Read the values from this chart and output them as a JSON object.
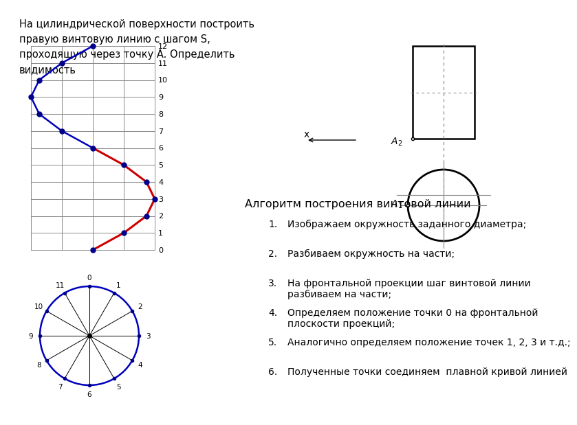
{
  "title_text": "На цилиндрической поверхности построить\nправую винтовую линию с шагом S,\nпроходящую через точку A. Определить\nвидимость",
  "algo_title": "Алгоритм построения винтовой линии",
  "algo_items": [
    "Изображаем окружность заданного диаметра;",
    "Разбиваем окружность на части;",
    "На фронтальной проекции шаг винтовой линии\nразбиваем на части;",
    "Определяем положение точки 0 на фронтальной\nплоскости проекций;",
    "Аналогично определяем положение точек 1, 2, 3 и т.д.;",
    "Полученные точки соединяем  плавной кривой линией"
  ],
  "grid_color": "#888888",
  "line_color_red": "#cc0000",
  "line_color_blue": "#0000bb",
  "dot_color_blue": "#00008B",
  "bg_color": "#ffffff"
}
